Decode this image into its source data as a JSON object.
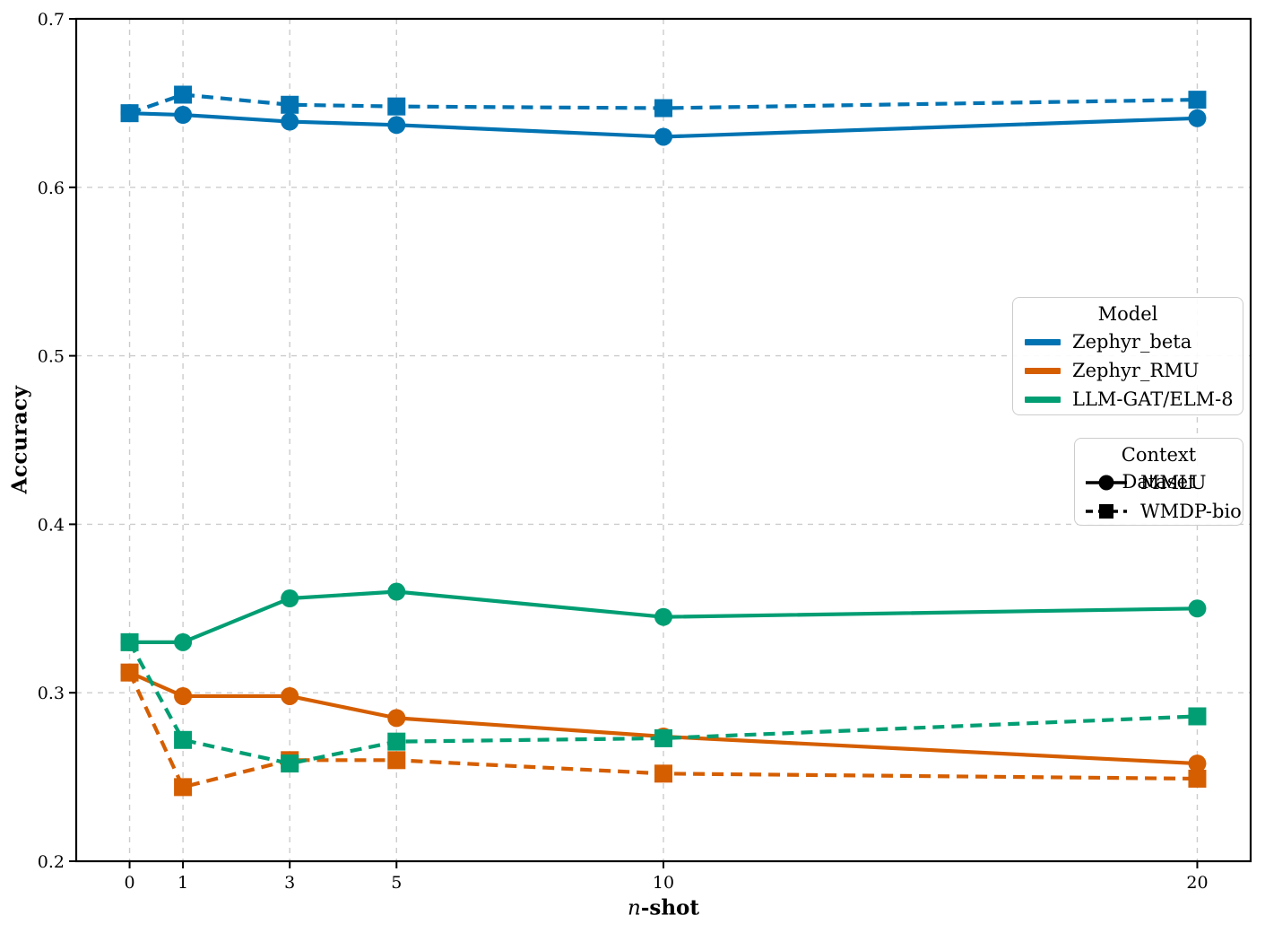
{
  "chart_data": {
    "type": "line",
    "xlabel_italic": "n",
    "xlabel_rest": "-shot",
    "ylabel": "Accuracy",
    "x": [
      0,
      1,
      3,
      5,
      10,
      20
    ],
    "x_tick_labels": [
      "0",
      "1",
      "3",
      "5",
      "10",
      "20"
    ],
    "y_ticks": [
      0.2,
      0.3,
      0.4,
      0.5,
      0.6,
      0.7
    ],
    "y_tick_labels": [
      "0.2",
      "0.3",
      "0.4",
      "0.5",
      "0.6",
      "0.7"
    ],
    "xlim": [
      -1,
      21
    ],
    "ylim": [
      0.2,
      0.7
    ],
    "grid": true,
    "series": [
      {
        "model": "Zephyr_beta",
        "dataset": "MMLU",
        "color": "#0173b2",
        "line": "solid",
        "marker": "circle",
        "values": [
          0.644,
          0.643,
          0.639,
          0.637,
          0.63,
          0.641
        ]
      },
      {
        "model": "Zephyr_beta",
        "dataset": "WMDP-bio",
        "color": "#0173b2",
        "line": "dashed",
        "marker": "square",
        "values": [
          0.644,
          0.655,
          0.649,
          0.648,
          0.647,
          0.652
        ]
      },
      {
        "model": "Zephyr_RMU",
        "dataset": "MMLU",
        "color": "#d55e00",
        "line": "solid",
        "marker": "circle",
        "values": [
          0.312,
          0.298,
          0.298,
          0.285,
          0.274,
          0.258
        ]
      },
      {
        "model": "Zephyr_RMU",
        "dataset": "WMDP-bio",
        "color": "#d55e00",
        "line": "dashed",
        "marker": "square",
        "values": [
          0.312,
          0.244,
          0.26,
          0.26,
          0.252,
          0.249
        ]
      },
      {
        "model": "LLM-GAT/ELM-8",
        "dataset": "MMLU",
        "color": "#029e73",
        "line": "solid",
        "marker": "circle",
        "values": [
          0.33,
          0.33,
          0.356,
          0.36,
          0.345,
          0.35
        ]
      },
      {
        "model": "LLM-GAT/ELM-8",
        "dataset": "WMDP-bio",
        "color": "#029e73",
        "line": "dashed",
        "marker": "square",
        "values": [
          0.33,
          0.272,
          0.258,
          0.271,
          0.273,
          0.286
        ]
      }
    ],
    "legend_model": {
      "title": "Model",
      "entries": [
        {
          "label": "Zephyr_beta",
          "color": "#0173b2"
        },
        {
          "label": "Zephyr_RMU",
          "color": "#d55e00"
        },
        {
          "label": "LLM-GAT/ELM-8",
          "color": "#029e73"
        }
      ]
    },
    "legend_dataset": {
      "title": "Context Dataset",
      "entries": [
        {
          "label": "MMLU",
          "marker": "circle",
          "line": "solid"
        },
        {
          "label": "WMDP-bio",
          "marker": "square",
          "line": "dashed"
        }
      ]
    },
    "colors": {
      "grid": "#cccccc",
      "axis": "#000000",
      "background": "#ffffff"
    }
  }
}
